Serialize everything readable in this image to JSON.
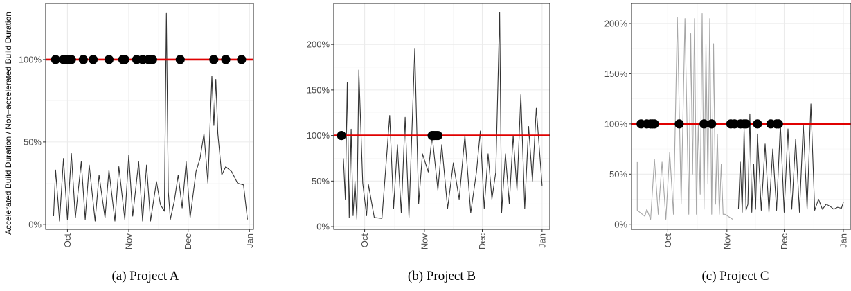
{
  "figure": {
    "ylabel": "Accelerated Build Duration / Non−accelerated Build Duration",
    "colors": {
      "line": "#333333",
      "faded_line": "#a6a6a6",
      "reference": "#e00000",
      "marker": "#000000",
      "grid": "#ebebeb",
      "frame": "#333333"
    }
  },
  "chart_data": [
    {
      "type": "line",
      "caption": "(a) Project A",
      "x_ticks": [
        "Oct",
        "Nov",
        "Dec",
        "Jan"
      ],
      "x_tick_dates": [
        "2016-10-01",
        "2016-11-01",
        "2016-12-01",
        "2017-01-01"
      ],
      "x_range": [
        "2016-09-20",
        "2017-01-03"
      ],
      "y_ticks": [
        "0%",
        "50%",
        "100%"
      ],
      "y_tick_values": [
        0,
        50,
        100
      ],
      "ylim": [
        -3,
        134
      ],
      "reference_line": 100,
      "grid": true,
      "series": [
        {
          "values": {
            "date": [
              "2016-09-24",
              "2016-09-25",
              "2016-09-27",
              "2016-09-29",
              "2016-10-01",
              "2016-10-03",
              "2016-10-05",
              "2016-10-08",
              "2016-10-10",
              "2016-10-12",
              "2016-10-15",
              "2016-10-17",
              "2016-10-20",
              "2016-10-22",
              "2016-10-25",
              "2016-10-27",
              "2016-10-30",
              "2016-11-01",
              "2016-11-03",
              "2016-11-06",
              "2016-11-08",
              "2016-11-10",
              "2016-11-12",
              "2016-11-15",
              "2016-11-17",
              "2016-11-19",
              "2016-11-20",
              "2016-11-21",
              "2016-11-22",
              "2016-11-24",
              "2016-11-26",
              "2016-11-28",
              "2016-11-30",
              "2016-12-02",
              "2016-12-05",
              "2016-12-07",
              "2016-12-09",
              "2016-12-11",
              "2016-12-13",
              "2016-12-14",
              "2016-12-15",
              "2016-12-16",
              "2016-12-18",
              "2016-12-20",
              "2016-12-23",
              "2016-12-26",
              "2016-12-29",
              "2016-12-31"
            ],
            "value": [
              5,
              33,
              2,
              40,
              3,
              43,
              4,
              38,
              3,
              36,
              2,
              30,
              4,
              33,
              2,
              35,
              3,
              42,
              5,
              38,
              2,
              36,
              2,
              26,
              12,
              8,
              128,
              20,
              3,
              14,
              30,
              10,
              38,
              4,
              32,
              40,
              55,
              25,
              90,
              60,
              88,
              55,
              30,
              35,
              32,
              25,
              24,
              3
            ]
          }
        }
      ],
      "markers": {
        "date": [
          "2016-09-25",
          "2016-09-29",
          "2016-10-01",
          "2016-10-03",
          "2016-10-09",
          "2016-10-14",
          "2016-10-22",
          "2016-10-29",
          "2016-10-30",
          "2016-11-05",
          "2016-11-08",
          "2016-11-11",
          "2016-11-13",
          "2016-11-27",
          "2016-12-14",
          "2016-12-20",
          "2016-12-28"
        ],
        "value": [
          100,
          100,
          100,
          100,
          100,
          100,
          100,
          100,
          100,
          100,
          100,
          100,
          100,
          100,
          100,
          100,
          100
        ]
      }
    },
    {
      "type": "line",
      "caption": "(b) Project B",
      "x_ticks": [
        "Oct",
        "Nov",
        "Dec",
        "Jan"
      ],
      "x_tick_dates": [
        "2016-10-01",
        "2016-11-01",
        "2016-12-01",
        "2017-01-01"
      ],
      "x_range": [
        "2016-09-15",
        "2017-01-05"
      ],
      "y_ticks": [
        "0%",
        "50%",
        "100%",
        "150%",
        "200%"
      ],
      "y_tick_values": [
        0,
        50,
        100,
        150,
        200
      ],
      "ylim": [
        -3,
        245
      ],
      "reference_line": 100,
      "grid": true,
      "series": [
        {
          "values": {
            "date": [
              "2016-09-20",
              "2016-09-21",
              "2016-09-22",
              "2016-09-23",
              "2016-09-24",
              "2016-09-25",
              "2016-09-26",
              "2016-09-27",
              "2016-09-28",
              "2016-09-30",
              "2016-10-02",
              "2016-10-03",
              "2016-10-06",
              "2016-10-10",
              "2016-10-14",
              "2016-10-16",
              "2016-10-18",
              "2016-10-20",
              "2016-10-22",
              "2016-10-24",
              "2016-10-27",
              "2016-10-29",
              "2016-10-31",
              "2016-11-03",
              "2016-11-05",
              "2016-11-08",
              "2016-11-10",
              "2016-11-13",
              "2016-11-16",
              "2016-11-19",
              "2016-11-22",
              "2016-11-25",
              "2016-11-28",
              "2016-11-30",
              "2016-12-02",
              "2016-12-04",
              "2016-12-06",
              "2016-12-08",
              "2016-12-10",
              "2016-12-11",
              "2016-12-13",
              "2016-12-15",
              "2016-12-17",
              "2016-12-19",
              "2016-12-21",
              "2016-12-23",
              "2016-12-25",
              "2016-12-27",
              "2016-12-29",
              "2017-01-01"
            ],
            "value": [
              75,
              30,
              158,
              10,
              107,
              12,
              50,
              8,
              172,
              48,
              12,
              46,
              10,
              9,
              122,
              20,
              90,
              15,
              120,
              10,
              195,
              25,
              80,
              60,
              100,
              40,
              90,
              20,
              70,
              30,
              100,
              15,
              60,
              105,
              20,
              80,
              30,
              60,
              235,
              15,
              80,
              25,
              100,
              40,
              145,
              20,
              110,
              50,
              130,
              45
            ]
          }
        }
      ],
      "markers": {
        "date": [
          "2016-09-19",
          "2016-11-05",
          "2016-11-06",
          "2016-11-07",
          "2016-11-08"
        ],
        "value": [
          100,
          100,
          100,
          100,
          100
        ]
      }
    },
    {
      "type": "line",
      "caption": "(c) Project C",
      "x_ticks": [
        "Oct",
        "Nov",
        "Dec",
        "Jan"
      ],
      "x_tick_dates": [
        "2016-10-01",
        "2016-11-01",
        "2016-12-01",
        "2017-01-01"
      ],
      "x_range": [
        "2016-09-12",
        "2017-01-05"
      ],
      "y_ticks": [
        "0%",
        "50%",
        "100%",
        "150%",
        "200%"
      ],
      "y_tick_values": [
        0,
        50,
        100,
        150,
        200
      ],
      "ylim": [
        -5,
        220
      ],
      "reference_line": 100,
      "grid": true,
      "series": [
        {
          "name": "",
          "faded": true,
          "values": {
            "date": [
              "2016-09-15",
              "2016-09-15",
              "2016-09-19",
              "2016-09-20",
              "2016-09-22",
              "2016-09-24",
              "2016-09-26",
              "2016-09-28",
              "2016-09-30",
              "2016-10-02",
              "2016-10-04",
              "2016-10-06",
              "2016-10-08",
              "2016-10-10",
              "2016-10-12",
              "2016-10-13",
              "2016-10-14",
              "2016-10-15",
              "2016-10-16",
              "2016-10-17",
              "2016-10-18",
              "2016-10-19",
              "2016-10-20",
              "2016-10-21",
              "2016-10-22",
              "2016-10-23",
              "2016-10-24",
              "2016-10-25",
              "2016-10-26",
              "2016-10-27",
              "2016-10-28",
              "2016-10-29",
              "2016-10-30",
              "2016-10-31",
              "2016-11-04"
            ],
            "value": [
              62,
              14,
              8,
              15,
              5,
              65,
              10,
              62,
              5,
              72,
              10,
              206,
              20,
              205,
              10,
              190,
              50,
              205,
              10,
              100,
              30,
              210,
              15,
              180,
              40,
              205,
              10,
              180,
              20,
              90,
              10,
              60,
              10,
              10,
              5
            ]
          }
        },
        {
          "name": "",
          "values": {
            "date": [
              "2016-11-07",
              "2016-11-08",
              "2016-11-09",
              "2016-11-10",
              "2016-11-11",
              "2016-11-12",
              "2016-11-13",
              "2016-11-14",
              "2016-11-15",
              "2016-11-16",
              "2016-11-17",
              "2016-11-19",
              "2016-11-21",
              "2016-11-23",
              "2016-11-25",
              "2016-11-27",
              "2016-11-29",
              "2016-12-01",
              "2016-12-03",
              "2016-12-05",
              "2016-12-07",
              "2016-12-09",
              "2016-12-11",
              "2016-12-13",
              "2016-12-15",
              "2016-12-17",
              "2016-12-19",
              "2016-12-21",
              "2016-12-23",
              "2016-12-25",
              "2016-12-27",
              "2016-12-29",
              "2016-12-31",
              "2017-01-01"
            ],
            "value": [
              15,
              62,
              12,
              95,
              14,
              20,
              110,
              12,
              60,
              15,
              90,
              14,
              80,
              12,
              75,
              14,
              100,
              12,
              95,
              15,
              85,
              12,
              100,
              15,
              120,
              14,
              25,
              15,
              20,
              18,
              15,
              17,
              16,
              22
            ]
          }
        }
      ],
      "markers": {
        "date": [
          "2016-09-17",
          "2016-09-20",
          "2016-09-22",
          "2016-09-23",
          "2016-09-24",
          "2016-10-07",
          "2016-10-20",
          "2016-10-24",
          "2016-11-03",
          "2016-11-05",
          "2016-11-08",
          "2016-11-10",
          "2016-11-11",
          "2016-11-17",
          "2016-11-24",
          "2016-11-27",
          "2016-11-28"
        ],
        "value": [
          100,
          100,
          100,
          100,
          100,
          100,
          100,
          100,
          100,
          100,
          100,
          100,
          100,
          100,
          100,
          100,
          100
        ]
      }
    }
  ]
}
